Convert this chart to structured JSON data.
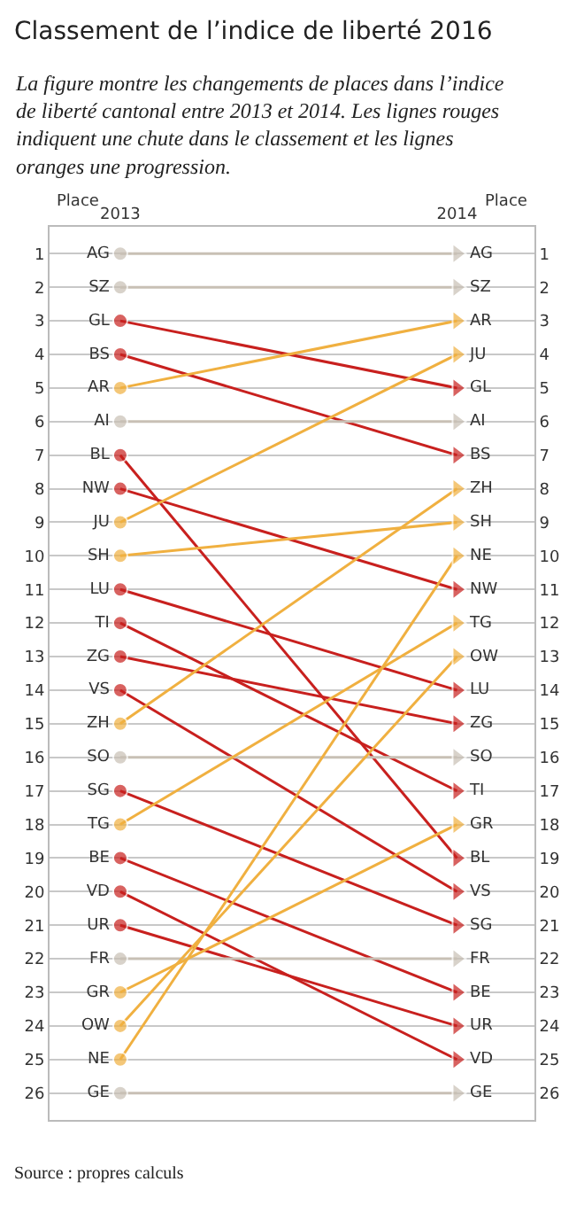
{
  "chart_data": {
    "type": "line",
    "title": "Classement de l’indice de liberté 2016",
    "subtitle": "La figure montre les changements de places dans l’indice de liberté cantonal entre 2013 et 2014. Les lignes rouges indiquent une chute dans le classement et les lignes oranges une progression.",
    "ylabel": "Place",
    "y2label": "Place",
    "categories": [
      "2013",
      "2014"
    ],
    "ylim": [
      26.8,
      0.2
    ],
    "yticks": [
      1,
      2,
      3,
      4,
      5,
      6,
      7,
      8,
      9,
      10,
      11,
      12,
      13,
      14,
      15,
      16,
      17,
      18,
      19,
      20,
      21,
      22,
      23,
      24,
      25,
      26
    ],
    "y2lim": [
      26.8,
      0.2
    ],
    "y2ticks": [
      1,
      2,
      3,
      4,
      5,
      6,
      7,
      8,
      9,
      10,
      11,
      12,
      13,
      14,
      15,
      16,
      17,
      18,
      19,
      20,
      21,
      22,
      23,
      24,
      25,
      26
    ],
    "grid": "y",
    "legend": false,
    "marker": "circle",
    "line_style": "solid",
    "annotations": [
      "Source : propres calculs"
    ],
    "series": [
      {
        "name": "AG",
        "color": "#c8c0b5",
        "values": [
          1,
          1
        ]
      },
      {
        "name": "SZ",
        "color": "#c8c0b5",
        "values": [
          2,
          2
        ]
      },
      {
        "name": "GL",
        "color": "#c8201e",
        "values": [
          3,
          5
        ]
      },
      {
        "name": "BS",
        "color": "#c8201e",
        "values": [
          4,
          7
        ]
      },
      {
        "name": "AR",
        "color": "#f0b040",
        "values": [
          5,
          3
        ]
      },
      {
        "name": "AI",
        "color": "#c8c0b5",
        "values": [
          6,
          6
        ]
      },
      {
        "name": "BL",
        "color": "#c8201e",
        "values": [
          7,
          19
        ]
      },
      {
        "name": "NW",
        "color": "#c8201e",
        "values": [
          8,
          11
        ]
      },
      {
        "name": "JU",
        "color": "#f0b040",
        "values": [
          9,
          4
        ]
      },
      {
        "name": "SH",
        "color": "#f0b040",
        "values": [
          10,
          9
        ]
      },
      {
        "name": "LU",
        "color": "#c8201e",
        "values": [
          11,
          14
        ]
      },
      {
        "name": "TI",
        "color": "#c8201e",
        "values": [
          12,
          17
        ]
      },
      {
        "name": "ZG",
        "color": "#c8201e",
        "values": [
          13,
          15
        ]
      },
      {
        "name": "VS",
        "color": "#c8201e",
        "values": [
          14,
          20
        ]
      },
      {
        "name": "ZH",
        "color": "#f0b040",
        "values": [
          15,
          8
        ]
      },
      {
        "name": "SO",
        "color": "#c8c0b5",
        "values": [
          16,
          16
        ]
      },
      {
        "name": "SG",
        "color": "#c8201e",
        "values": [
          17,
          21
        ]
      },
      {
        "name": "TG",
        "color": "#f0b040",
        "values": [
          18,
          12
        ]
      },
      {
        "name": "BE",
        "color": "#c8201e",
        "values": [
          19,
          23
        ]
      },
      {
        "name": "VD",
        "color": "#c8201e",
        "values": [
          20,
          25
        ]
      },
      {
        "name": "UR",
        "color": "#c8201e",
        "values": [
          21,
          24
        ]
      },
      {
        "name": "FR",
        "color": "#c8c0b5",
        "values": [
          22,
          22
        ]
      },
      {
        "name": "GR",
        "color": "#f0b040",
        "values": [
          23,
          18
        ]
      },
      {
        "name": "OW",
        "color": "#f0b040",
        "values": [
          24,
          13
        ]
      },
      {
        "name": "NE",
        "color": "#f0b040",
        "values": [
          25,
          10
        ]
      },
      {
        "name": "GE",
        "color": "#c8c0b5",
        "values": [
          26,
          26
        ]
      }
    ]
  }
}
